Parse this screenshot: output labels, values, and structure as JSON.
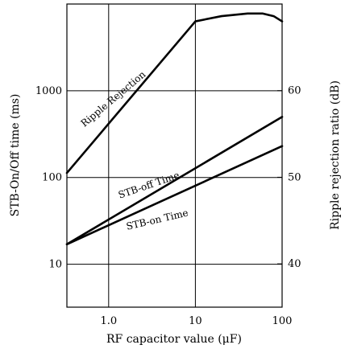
{
  "chart_data": {
    "type": "line",
    "title": "",
    "xlabel": "RF capacitor value  (μF)",
    "ylabel_left": "STB-On/Off time  (ms)",
    "ylabel_right": "Ripple rejection ratio  (dB)",
    "x_scale": "log",
    "xlim": [
      0.33,
      100
    ],
    "x_ticks": [
      1.0,
      10,
      100
    ],
    "x_tick_labels": [
      "1.0",
      "10",
      "100"
    ],
    "y_left_scale": "log",
    "y_left_lim": [
      3.2,
      10000
    ],
    "y_left_ticks": [
      10,
      100,
      1000
    ],
    "y_left_tick_labels": [
      "10",
      "100",
      "1000"
    ],
    "y_right_scale": "linear",
    "y_right_lim": [
      35,
      70
    ],
    "y_right_ticks": [
      40,
      50,
      60
    ],
    "y_right_tick_labels": [
      "40",
      "50",
      "60"
    ],
    "grid": true,
    "series": [
      {
        "name": "Ripple Rejection",
        "axis": "right",
        "points": [
          [
            0.33,
            50.5
          ],
          [
            10,
            68.0
          ],
          [
            20,
            68.6
          ],
          [
            40,
            68.9
          ],
          [
            60,
            68.9
          ],
          [
            80,
            68.6
          ],
          [
            100,
            68.0
          ]
        ]
      },
      {
        "name": "STB-off Time",
        "axis": "left",
        "points": [
          [
            0.33,
            17
          ],
          [
            100,
            500
          ]
        ]
      },
      {
        "name": "STB-on Time",
        "axis": "left",
        "points": [
          [
            0.33,
            17
          ],
          [
            100,
            230
          ]
        ]
      }
    ]
  }
}
